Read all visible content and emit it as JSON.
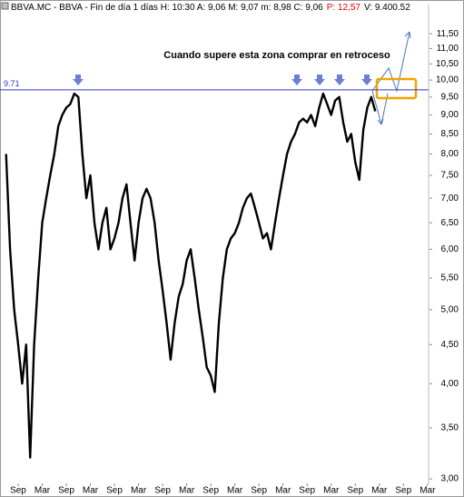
{
  "chart_data": {
    "type": "line",
    "header": [
      {
        "text": "BBVA.MC - BBVA - Fin de día 1 días H: 10:30 A: 9,06 M: 9,07 m: 8,98 C: 9,06",
        "color": "#000000"
      },
      {
        "text": "P: 12,57",
        "color": "#e00000"
      },
      {
        "text": "V: 9.400.52",
        "color": "#000000"
      }
    ],
    "annotation": "Cuando supere esta zona comprar en retroceso",
    "reference_line": {
      "value": 9.71,
      "color": "#3333cc"
    },
    "color": "#000000",
    "log_scale": true,
    "ylim": [
      2.96,
      12.56
    ],
    "yticks": [
      {
        "value": 3,
        "label": "3,00"
      },
      {
        "value": 3.5,
        "label": "3,50"
      },
      {
        "value": 4,
        "label": "4,00"
      },
      {
        "value": 4.5,
        "label": "4,50"
      },
      {
        "value": 5,
        "label": "5,00"
      },
      {
        "value": 5.5,
        "label": "5,50"
      },
      {
        "value": 6,
        "label": "6,00"
      },
      {
        "value": 6.5,
        "label": "6,50"
      },
      {
        "value": 7,
        "label": "7,00"
      },
      {
        "value": 7.5,
        "label": "7,50"
      },
      {
        "value": 8,
        "label": "8,00"
      },
      {
        "value": 8.5,
        "label": "8,50"
      },
      {
        "value": 9,
        "label": "9,00"
      },
      {
        "value": 9.5,
        "label": "9,50"
      },
      {
        "value": 10,
        "label": "10,00"
      },
      {
        "value": 10.5,
        "label": "10,50"
      },
      {
        "value": 11,
        "label": "11,00"
      },
      {
        "value": 11.5,
        "label": "11,50"
      }
    ],
    "categories": [
      null,
      null,
      null,
      "Sep",
      null,
      null,
      null,
      null,
      null,
      "Mar",
      null,
      null,
      null,
      null,
      null,
      "Sep",
      null,
      null,
      null,
      null,
      null,
      "Mar",
      null,
      null,
      null,
      null,
      null,
      "Sep",
      null,
      null,
      null,
      null,
      null,
      "Mar",
      null,
      null,
      null,
      null,
      null,
      "Sep",
      null,
      null,
      null,
      null,
      null,
      "Mar",
      null,
      null,
      null,
      null,
      null,
      "Sep",
      null,
      null,
      null,
      null,
      null,
      "Mar",
      null,
      null,
      null,
      null,
      null,
      "Sep",
      null,
      null,
      null,
      null,
      null,
      "Mar",
      null,
      null,
      null,
      null,
      null,
      "Sep",
      null,
      null,
      null,
      null,
      null,
      "Mar",
      null,
      null,
      null,
      null,
      null,
      "Sep",
      null,
      null,
      null,
      null,
      null,
      "Mar",
      null,
      null,
      null,
      null,
      null,
      "Sep",
      null,
      null,
      null,
      null,
      null,
      "Mar",
      null,
      null
    ],
    "values": [
      8.0,
      6.0,
      5.0,
      4.5,
      4.0,
      4.5,
      3.2,
      4.5,
      5.5,
      6.5,
      7.0,
      7.5,
      8.0,
      8.7,
      9.0,
      9.2,
      9.3,
      9.6,
      9.5,
      8.0,
      7.0,
      7.5,
      6.5,
      6.0,
      6.5,
      6.8,
      6.0,
      6.2,
      6.5,
      7.0,
      7.3,
      6.5,
      5.8,
      6.5,
      7.0,
      7.2,
      7.0,
      6.5,
      5.8,
      5.3,
      4.8,
      4.3,
      4.8,
      5.2,
      5.4,
      5.8,
      6.0,
      5.5,
      5.0,
      4.6,
      4.2,
      4.1,
      3.9,
      4.8,
      5.5,
      6.0,
      6.2,
      6.3,
      6.5,
      6.8,
      7.0,
      7.1,
      6.8,
      6.5,
      6.2,
      6.3,
      6.0,
      6.5,
      7.0,
      7.5,
      8.0,
      8.3,
      8.5,
      8.8,
      8.9,
      8.8,
      9.0,
      8.7,
      9.2,
      9.6,
      9.3,
      9.0,
      9.4,
      9.5,
      8.8,
      8.3,
      8.5,
      7.8,
      7.4,
      8.6,
      9.2,
      9.5,
      9.1,
      null,
      null,
      null,
      null,
      null,
      null,
      null,
      null,
      null,
      null,
      null,
      null,
      null,
      null,
      null
    ]
  }
}
